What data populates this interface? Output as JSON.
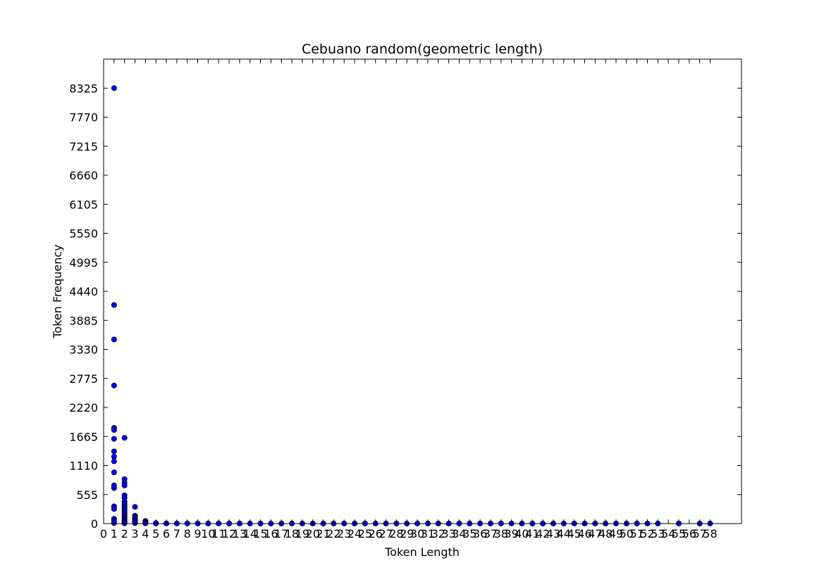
{
  "chart_data": {
    "type": "scatter",
    "title": "Cebuano random(geometric length)",
    "xlabel": "Token Length",
    "ylabel": "Token Frequency",
    "xlim": [
      0,
      61
    ],
    "ylim": [
      0,
      8880
    ],
    "xticks": [
      0,
      1,
      2,
      3,
      4,
      5,
      6,
      7,
      8,
      9,
      10,
      11,
      12,
      13,
      14,
      15,
      16,
      17,
      18,
      19,
      20,
      21,
      22,
      23,
      24,
      25,
      26,
      27,
      28,
      29,
      30,
      31,
      32,
      33,
      34,
      35,
      36,
      37,
      38,
      39,
      40,
      41,
      42,
      43,
      44,
      45,
      46,
      47,
      48,
      49,
      50,
      51,
      52,
      53,
      54,
      55,
      56,
      57,
      58
    ],
    "yticks": [
      0,
      555,
      1110,
      1665,
      2220,
      2775,
      3330,
      3885,
      4440,
      4995,
      5550,
      6105,
      6660,
      7215,
      7770,
      8325
    ],
    "grid": false,
    "marker_color": "#0000ff",
    "points": [
      {
        "x": 1,
        "y": 8325
      },
      {
        "x": 1,
        "y": 4180
      },
      {
        "x": 1,
        "y": 3520
      },
      {
        "x": 1,
        "y": 2640
      },
      {
        "x": 1,
        "y": 1830
      },
      {
        "x": 1,
        "y": 1790
      },
      {
        "x": 1,
        "y": 1620
      },
      {
        "x": 1,
        "y": 1380
      },
      {
        "x": 1,
        "y": 1280
      },
      {
        "x": 1,
        "y": 1190
      },
      {
        "x": 1,
        "y": 980
      },
      {
        "x": 1,
        "y": 730
      },
      {
        "x": 1,
        "y": 680
      },
      {
        "x": 1,
        "y": 330
      },
      {
        "x": 1,
        "y": 280
      },
      {
        "x": 1,
        "y": 90
      },
      {
        "x": 1,
        "y": 40
      },
      {
        "x": 1,
        "y": 10
      },
      {
        "x": 2,
        "y": 1640
      },
      {
        "x": 2,
        "y": 850
      },
      {
        "x": 2,
        "y": 780
      },
      {
        "x": 2,
        "y": 730
      },
      {
        "x": 2,
        "y": 540
      },
      {
        "x": 2,
        "y": 490
      },
      {
        "x": 2,
        "y": 420
      },
      {
        "x": 2,
        "y": 380
      },
      {
        "x": 2,
        "y": 350
      },
      {
        "x": 2,
        "y": 310
      },
      {
        "x": 2,
        "y": 270
      },
      {
        "x": 2,
        "y": 230
      },
      {
        "x": 2,
        "y": 200
      },
      {
        "x": 2,
        "y": 170
      },
      {
        "x": 2,
        "y": 140
      },
      {
        "x": 2,
        "y": 110
      },
      {
        "x": 2,
        "y": 85
      },
      {
        "x": 2,
        "y": 60
      },
      {
        "x": 2,
        "y": 40
      },
      {
        "x": 2,
        "y": 20
      },
      {
        "x": 2,
        "y": 5
      },
      {
        "x": 3,
        "y": 320
      },
      {
        "x": 3,
        "y": 150
      },
      {
        "x": 3,
        "y": 120
      },
      {
        "x": 3,
        "y": 90
      },
      {
        "x": 3,
        "y": 65
      },
      {
        "x": 3,
        "y": 45
      },
      {
        "x": 3,
        "y": 25
      },
      {
        "x": 3,
        "y": 10
      },
      {
        "x": 4,
        "y": 50
      },
      {
        "x": 4,
        "y": 30
      },
      {
        "x": 4,
        "y": 15
      },
      {
        "x": 4,
        "y": 5
      },
      {
        "x": 5,
        "y": 8
      },
      {
        "x": 5,
        "y": 3
      },
      {
        "x": 6,
        "y": 3
      },
      {
        "x": 7,
        "y": 2
      },
      {
        "x": 8,
        "y": 2
      },
      {
        "x": 9,
        "y": 2
      },
      {
        "x": 10,
        "y": 1
      },
      {
        "x": 11,
        "y": 1
      },
      {
        "x": 12,
        "y": 1
      },
      {
        "x": 13,
        "y": 1
      },
      {
        "x": 14,
        "y": 1
      },
      {
        "x": 15,
        "y": 1
      },
      {
        "x": 16,
        "y": 1
      },
      {
        "x": 17,
        "y": 1
      },
      {
        "x": 18,
        "y": 1
      },
      {
        "x": 19,
        "y": 1
      },
      {
        "x": 20,
        "y": 1
      },
      {
        "x": 21,
        "y": 1
      },
      {
        "x": 22,
        "y": 1
      },
      {
        "x": 23,
        "y": 1
      },
      {
        "x": 24,
        "y": 1
      },
      {
        "x": 25,
        "y": 1
      },
      {
        "x": 26,
        "y": 1
      },
      {
        "x": 27,
        "y": 1
      },
      {
        "x": 28,
        "y": 1
      },
      {
        "x": 29,
        "y": 1
      },
      {
        "x": 30,
        "y": 1
      },
      {
        "x": 31,
        "y": 1
      },
      {
        "x": 32,
        "y": 1
      },
      {
        "x": 33,
        "y": 1
      },
      {
        "x": 34,
        "y": 1
      },
      {
        "x": 35,
        "y": 1
      },
      {
        "x": 36,
        "y": 1
      },
      {
        "x": 37,
        "y": 1
      },
      {
        "x": 38,
        "y": 1
      },
      {
        "x": 39,
        "y": 1
      },
      {
        "x": 40,
        "y": 1
      },
      {
        "x": 41,
        "y": 1
      },
      {
        "x": 42,
        "y": 1
      },
      {
        "x": 43,
        "y": 1
      },
      {
        "x": 44,
        "y": 1
      },
      {
        "x": 45,
        "y": 1
      },
      {
        "x": 46,
        "y": 1
      },
      {
        "x": 47,
        "y": 1
      },
      {
        "x": 48,
        "y": 1
      },
      {
        "x": 49,
        "y": 1
      },
      {
        "x": 50,
        "y": 1
      },
      {
        "x": 51,
        "y": 1
      },
      {
        "x": 52,
        "y": 1
      },
      {
        "x": 53,
        "y": 1
      },
      {
        "x": 55,
        "y": 1
      },
      {
        "x": 57,
        "y": 1
      },
      {
        "x": 58,
        "y": 1
      }
    ]
  }
}
